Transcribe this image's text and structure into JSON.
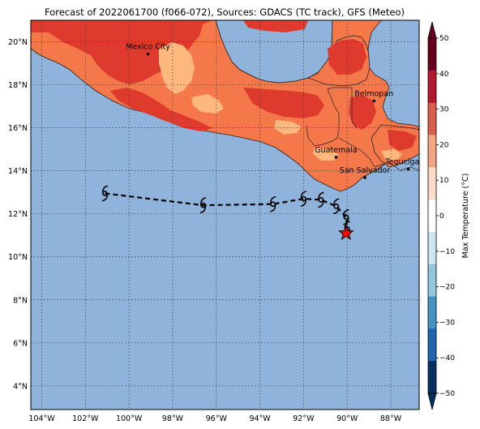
{
  "title": "Forecast of 2022061700 (f066-072), Sources: GDACS (TC track), GFS (Meteo)",
  "map": {
    "lon_range": [
      -104.5,
      -86.7
    ],
    "lat_range": [
      2.9,
      21.0
    ],
    "lon_ticks": [
      {
        "value": -104,
        "label": "104°W"
      },
      {
        "value": -102,
        "label": "102°W"
      },
      {
        "value": -100,
        "label": "100°W"
      },
      {
        "value": -98,
        "label": "98°W"
      },
      {
        "value": -96,
        "label": "96°W"
      },
      {
        "value": -94,
        "label": "94°W"
      },
      {
        "value": -92,
        "label": "92°W"
      },
      {
        "value": -90,
        "label": "90°W"
      },
      {
        "value": -88,
        "label": "88°W"
      }
    ],
    "lat_ticks": [
      {
        "value": 4,
        "label": "4°N"
      },
      {
        "value": 6,
        "label": "6°N"
      },
      {
        "value": 8,
        "label": "8°N"
      },
      {
        "value": 10,
        "label": "10°N"
      },
      {
        "value": 12,
        "label": "12°N"
      },
      {
        "value": 14,
        "label": "14°N"
      },
      {
        "value": 16,
        "label": "16°N"
      },
      {
        "value": 18,
        "label": "18°N"
      },
      {
        "value": 20,
        "label": "20°N"
      }
    ],
    "grid": true,
    "ocean_color": "#8fb3da"
  },
  "cities": [
    {
      "name": "Mexico City",
      "lon": -99.13,
      "lat": 19.43
    },
    {
      "name": "Belmopan",
      "lon": -88.77,
      "lat": 17.25
    },
    {
      "name": "Guatemala",
      "lon": -90.51,
      "lat": 14.63
    },
    {
      "name": "Tegucigalpa",
      "lon": -87.2,
      "lat": 14.08
    },
    {
      "name": "San Salvador",
      "lon": -89.19,
      "lat": 13.69
    }
  ],
  "storm_track": {
    "points": [
      {
        "lon": -101.1,
        "lat": 12.95
      },
      {
        "lon": -96.6,
        "lat": 12.4
      },
      {
        "lon": -93.4,
        "lat": 12.45
      },
      {
        "lon": -92.0,
        "lat": 12.7
      },
      {
        "lon": -91.2,
        "lat": 12.65
      },
      {
        "lon": -90.5,
        "lat": 12.35
      },
      {
        "lon": -90.05,
        "lat": 11.85
      },
      {
        "lon": -90.0,
        "lat": 11.3
      }
    ],
    "current_position": {
      "lon": -90.05,
      "lat": 11.1
    },
    "symbol": "tropical-storm-icon",
    "marker": "star-icon",
    "marker_color": "#ff0000"
  },
  "colorbar": {
    "label": "Max Temperature (°C)",
    "ticks": [
      "50",
      "40",
      "30",
      "20",
      "10",
      "0",
      "−10",
      "−20",
      "−30",
      "−40",
      "−50"
    ],
    "bands": [
      "#67001f",
      "#b2182b",
      "#d6604d",
      "#f4a582",
      "#fddbc7",
      "#ffffff",
      "#d1e5f0",
      "#92c5de",
      "#4393c3",
      "#2166ac",
      "#053061"
    ]
  },
  "temperature_fill": {
    "levels": [
      {
        "range": "20-30",
        "color": "#f4784a"
      },
      {
        "range": "30-35",
        "color": "#de3b2e"
      },
      {
        "range": "15-20",
        "color": "#fdb97d"
      }
    ]
  }
}
